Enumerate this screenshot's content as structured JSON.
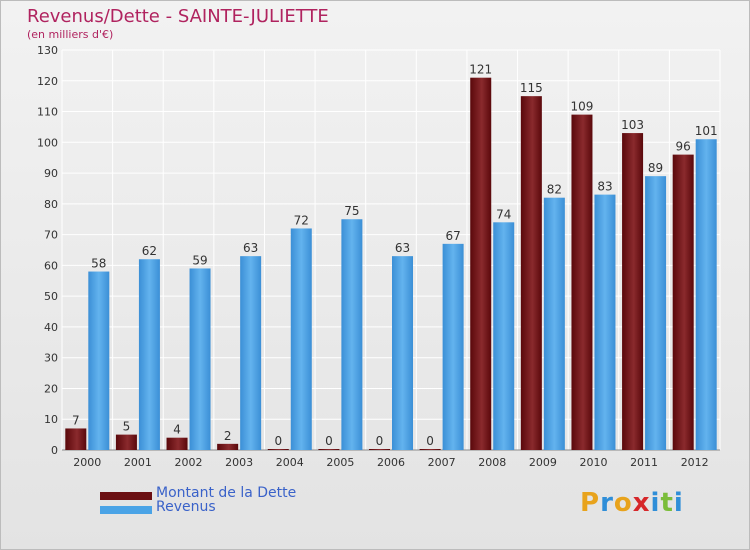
{
  "header": {
    "title": "Revenus/Dette - SAINTE-JULIETTE",
    "subtitle": "(en milliers d'€)"
  },
  "legend": {
    "items": [
      {
        "label": "Montant de la Dette",
        "color": "#6b0f12"
      },
      {
        "label": "Revenus",
        "color": "#4aa3e6"
      }
    ]
  },
  "logo": {
    "text": "Proxiti",
    "colors": [
      "#e8a31c",
      "#2f8ed8",
      "#e8a31c",
      "#d6272a",
      "#2f8ed8",
      "#7bbd3a",
      "#2f8ed8"
    ]
  },
  "chart_data": {
    "type": "bar",
    "categories": [
      "2000",
      "2001",
      "2002",
      "2003",
      "2004",
      "2005",
      "2006",
      "2007",
      "2008",
      "2009",
      "2010",
      "2011",
      "2012"
    ],
    "series": [
      {
        "name": "Montant de la Dette",
        "color": "#6b0f12",
        "values": [
          7,
          5,
          4,
          2,
          0,
          0,
          0,
          0,
          121,
          115,
          109,
          103,
          96
        ]
      },
      {
        "name": "Revenus",
        "color": "#4aa3e6",
        "values": [
          58,
          62,
          59,
          63,
          72,
          75,
          63,
          67,
          74,
          82,
          83,
          89,
          101
        ]
      }
    ],
    "title": "Revenus/Dette - SAINTE-JULIETTE",
    "subtitle": "(en milliers d'€)",
    "xlabel": "",
    "ylabel": "",
    "ylim": [
      0,
      130
    ],
    "yticks": [
      0,
      10,
      20,
      30,
      40,
      50,
      60,
      70,
      80,
      90,
      100,
      110,
      120,
      130
    ],
    "grid": true,
    "legend_position": "bottom-left"
  }
}
